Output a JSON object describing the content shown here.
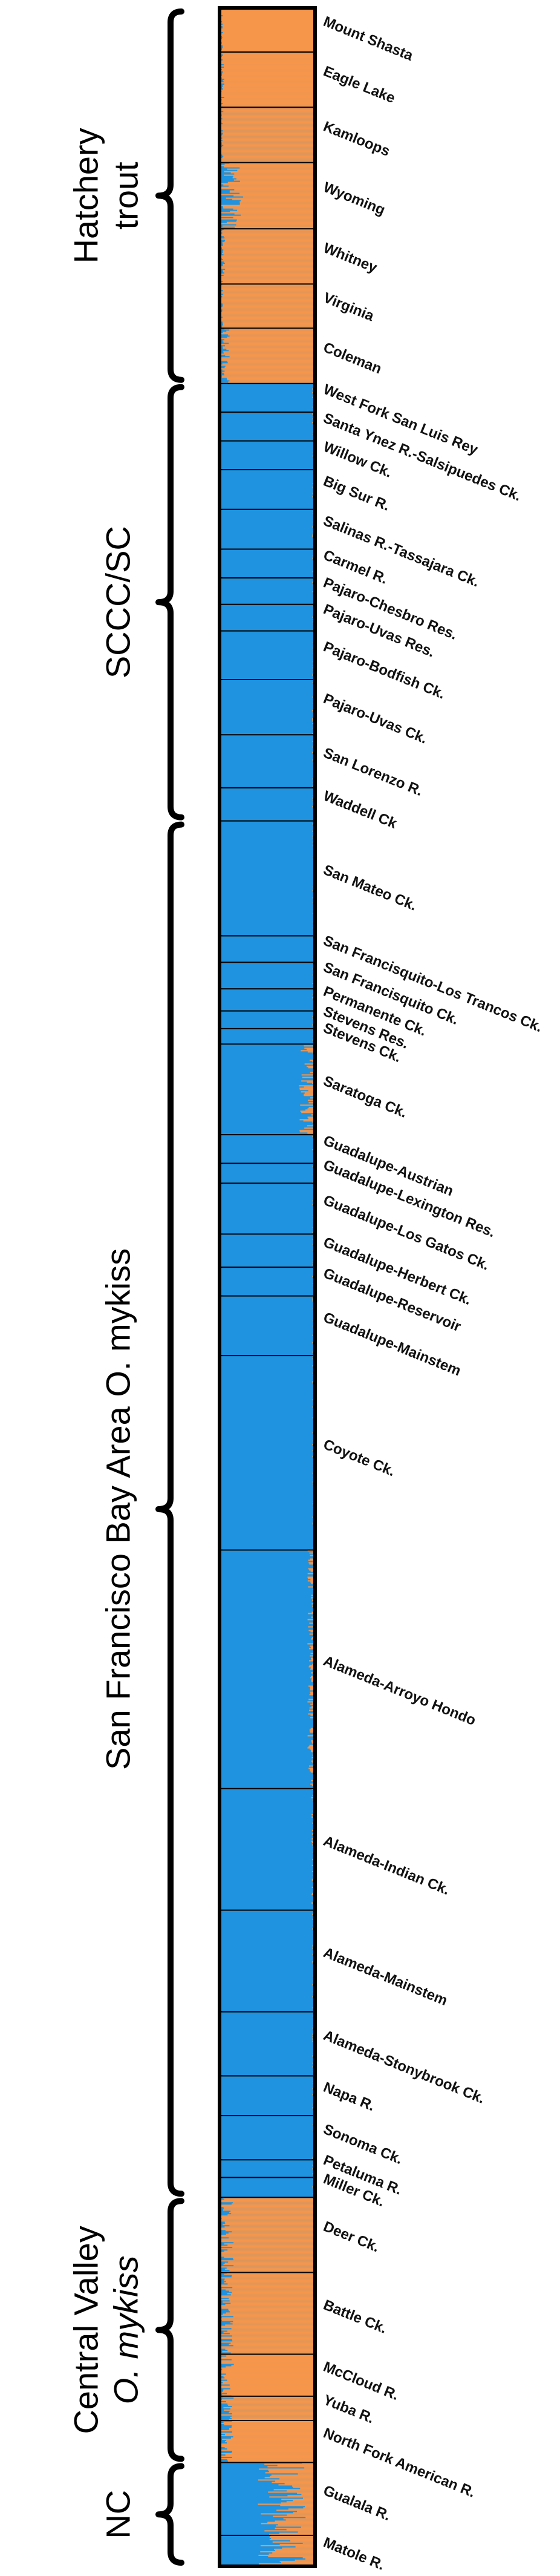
{
  "colors": {
    "cluster1": "#1f93df",
    "cluster2": "#f6964b",
    "frame": "#000000"
  },
  "chart_data": {
    "type": "bar",
    "orientation": "horizontal-stacked",
    "series_count": 2,
    "populations": [
      {
        "name": "Mount Shasta",
        "start": 0,
        "end": 2,
        "mix": 0.98,
        "noise": 0.02
      },
      {
        "name": "Eagle Lake",
        "start": 2,
        "end": 4.5,
        "mix": 0.98,
        "noise": 0.03
      },
      {
        "name": "Kamloops",
        "start": 4.5,
        "end": 7,
        "mix": 0.98,
        "noise": 0.02
      },
      {
        "name": "Wyoming",
        "start": 7,
        "end": 10,
        "mix": 0.9,
        "noise": 0.15
      },
      {
        "name": "Whitney",
        "start": 10,
        "end": 12.5,
        "mix": 0.97,
        "noise": 0.03
      },
      {
        "name": "Virginia",
        "start": 12.5,
        "end": 14.5,
        "mix": 0.98,
        "noise": 0.02
      },
      {
        "name": "Coleman",
        "start": 14.5,
        "end": 17,
        "mix": 0.95,
        "noise": 0.06
      },
      {
        "name": "West Fork San Luis Rey",
        "start": 17,
        "end": 18.3,
        "mix": 0.01,
        "noise": 0.02
      },
      {
        "name": "Santa Ynez R.-Salsipuedes Ck.",
        "start": 18.3,
        "end": 19.6,
        "mix": 0.01,
        "noise": 0.02
      },
      {
        "name": "Willow Ck.",
        "start": 19.6,
        "end": 20.9,
        "mix": 0.01,
        "noise": 0.02
      },
      {
        "name": "Big Sur R.",
        "start": 20.9,
        "end": 22.7,
        "mix": 0.01,
        "noise": 0.02
      },
      {
        "name": "Salinas R.-Tassajara Ck.",
        "start": 22.7,
        "end": 24.5,
        "mix": 0.01,
        "noise": 0.02
      },
      {
        "name": "Carmel R.",
        "start": 24.5,
        "end": 25.8,
        "mix": 0.01,
        "noise": 0.02
      },
      {
        "name": "Pajaro-Chesbro Res.",
        "start": 25.8,
        "end": 27,
        "mix": 0.01,
        "noise": 0.02
      },
      {
        "name": "Pajaro-Uvas Res.",
        "start": 27,
        "end": 28.2,
        "mix": 0.01,
        "noise": 0.02
      },
      {
        "name": "Pajaro-Bodfish Ck.",
        "start": 28.2,
        "end": 30.4,
        "mix": 0.01,
        "noise": 0.02
      },
      {
        "name": "Pajaro-Uvas Ck.",
        "start": 30.4,
        "end": 32.9,
        "mix": 0.01,
        "noise": 0.02
      },
      {
        "name": "San Lorenzo R.",
        "start": 32.9,
        "end": 35.3,
        "mix": 0.01,
        "noise": 0.02
      },
      {
        "name": "Waddell Ck",
        "start": 35.3,
        "end": 36.8,
        "mix": 0.01,
        "noise": 0.02
      },
      {
        "name": "San Mateo Ck.",
        "start": 36.8,
        "end": 42,
        "mix": 0.01,
        "noise": 0.02
      },
      {
        "name": "San Francisquito-Los Trancos Ck.",
        "start": 42,
        "end": 43.2,
        "mix": 0.01,
        "noise": 0.02
      },
      {
        "name": "San Francisquito Ck.",
        "start": 43.2,
        "end": 44.4,
        "mix": 0.01,
        "noise": 0.02
      },
      {
        "name": "Permanente Ck.",
        "start": 44.4,
        "end": 45.4,
        "mix": 0.01,
        "noise": 0.02
      },
      {
        "name": "Stevens Res.",
        "start": 45.4,
        "end": 46.2,
        "mix": 0.01,
        "noise": 0.02
      },
      {
        "name": "Stevens Ck.",
        "start": 46.2,
        "end": 46.9,
        "mix": 0.01,
        "noise": 0.02
      },
      {
        "name": "Saratoga Ck.",
        "start": 46.9,
        "end": 51,
        "mix": 0.05,
        "noise": 0.12
      },
      {
        "name": "Guadalupe-Austrian",
        "start": 51,
        "end": 52.3,
        "mix": 0.01,
        "noise": 0.02
      },
      {
        "name": "Guadalupe-Lexington Res.",
        "start": 52.3,
        "end": 53.2,
        "mix": 0.01,
        "noise": 0.02
      },
      {
        "name": "Guadalupe-Los Gatos Ck.",
        "start": 53.2,
        "end": 55.5,
        "mix": 0.01,
        "noise": 0.02
      },
      {
        "name": "Guadalupe-Herbert Ck.",
        "start": 55.5,
        "end": 57,
        "mix": 0.01,
        "noise": 0.02
      },
      {
        "name": "Guadalupe-Reservoir",
        "start": 57,
        "end": 58.3,
        "mix": 0.01,
        "noise": 0.02
      },
      {
        "name": "Guadalupe-Mainstem",
        "start": 58.3,
        "end": 61,
        "mix": 0.01,
        "noise": 0.02
      },
      {
        "name": "Coyote Ck.",
        "start": 61,
        "end": 69.8,
        "mix": 0.01,
        "noise": 0.02
      },
      {
        "name": "Alameda-Arroyo Hondo",
        "start": 69.8,
        "end": 80.6,
        "mix": 0.02,
        "noise": 0.06
      },
      {
        "name": "Alameda-Indian Ck.",
        "start": 80.6,
        "end": 86.1,
        "mix": 0.01,
        "noise": 0.03
      },
      {
        "name": "Alameda-Mainstem",
        "start": 86.1,
        "end": 90.7,
        "mix": 0.01,
        "noise": 0.02
      },
      {
        "name": "Alameda-Stonybrook Ck.",
        "start": 90.7,
        "end": 93.6,
        "mix": 0.01,
        "noise": 0.02
      },
      {
        "name": "Napa R.",
        "start": 93.6,
        "end": 95.4,
        "mix": 0.01,
        "noise": 0.02
      },
      {
        "name": "Sonoma Ck.",
        "start": 95.4,
        "end": 97.4,
        "mix": 0.01,
        "noise": 0.02
      },
      {
        "name": "Petaluma R.",
        "start": 97.4,
        "end": 98.2,
        "mix": 0.01,
        "noise": 0.02
      },
      {
        "name": "Miller Ck.",
        "start": 98.2,
        "end": 99.1,
        "mix": 0.01,
        "noise": 0.02
      },
      {
        "name": "Deer Ck.",
        "start": 99.1,
        "end": 102.5,
        "mix": 0.95,
        "noise": 0.1
      },
      {
        "name": "Battle Ck.",
        "start": 102.5,
        "end": 106.2,
        "mix": 0.95,
        "noise": 0.1
      },
      {
        "name": "McCloud R.",
        "start": 106.2,
        "end": 108.1,
        "mix": 0.95,
        "noise": 0.1
      },
      {
        "name": "Yuba R.",
        "start": 108.1,
        "end": 109.2,
        "mix": 0.95,
        "noise": 0.1
      },
      {
        "name": "North Fork American R.",
        "start": 109.2,
        "end": 111.1,
        "mix": 0.95,
        "noise": 0.1
      },
      {
        "name": "Gualala R.",
        "start": 111.1,
        "end": 114.4,
        "mix": 0.35,
        "noise": 0.25
      },
      {
        "name": "Matole R.",
        "start": 114.4,
        "end": 115.8,
        "mix": 0.35,
        "noise": 0.25
      }
    ],
    "groups": [
      {
        "line1": "Hatchery",
        "line2": "trout",
        "line2_italic": false,
        "start": 0,
        "end": 17
      },
      {
        "line1": "SCCC/SC",
        "line2": "",
        "line2_italic": false,
        "start": 17,
        "end": 36.8
      },
      {
        "line1": "San Francisco Bay Area O. mykiss",
        "line2": "",
        "line2_italic": false,
        "start": 36.8,
        "end": 99.1
      },
      {
        "line1": "Central Valley",
        "line2": "O. mykiss",
        "line2_italic": true,
        "start": 99.1,
        "end": 111.1
      },
      {
        "line1": "NC",
        "line2": "",
        "line2_italic": false,
        "start": 111.1,
        "end": 115.8
      }
    ]
  }
}
